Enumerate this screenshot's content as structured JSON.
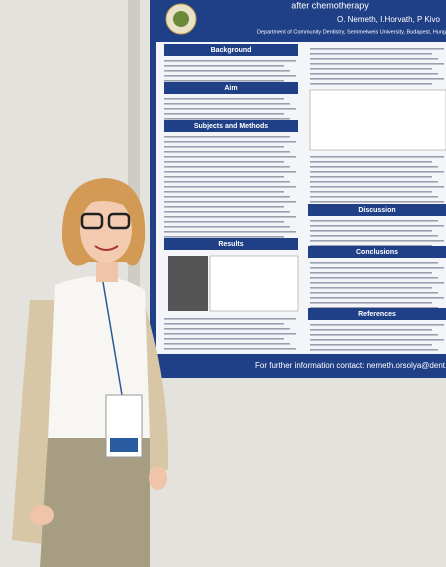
{
  "poster": {
    "title": "after chemotherapy",
    "authors": "O. Nemeth, I.Horvath, P Kivo",
    "affiliation": "Department of Community Dentistry, Semmelweis University, Budapest, Hung",
    "left_sections": [
      "Background",
      "Aim",
      "Subjects and Methods",
      "Results"
    ],
    "right_sections": [
      "Discussion",
      "Conclusions",
      "References"
    ],
    "footer": "For further information contact: nemeth.orsolya@dent.semmelweis-univ"
  }
}
